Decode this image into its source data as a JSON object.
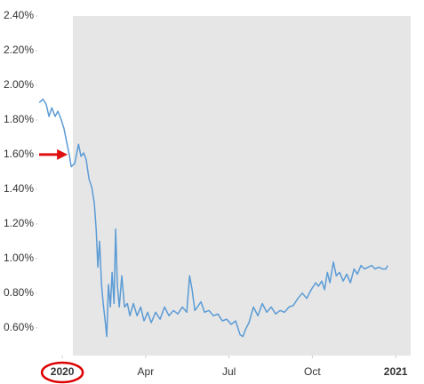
{
  "chart_data": {
    "type": "line",
    "x": [
      -0.83,
      -0.7,
      -0.58,
      -0.48,
      -0.38,
      -0.26,
      -0.16,
      -0.06,
      0.06,
      0.16,
      0.26,
      0.32,
      0.45,
      0.58,
      0.67,
      0.77,
      0.86,
      0.96,
      1.06,
      1.15,
      1.22,
      1.28,
      1.34,
      1.41,
      1.47,
      1.54,
      1.6,
      1.66,
      1.73,
      1.79,
      1.86,
      1.92,
      1.98,
      2.05,
      2.14,
      2.24,
      2.34,
      2.43,
      2.56,
      2.69,
      2.82,
      2.94,
      3.07,
      3.2,
      3.36,
      3.52,
      3.68,
      3.84,
      4.0,
      4.16,
      4.32,
      4.48,
      4.58,
      4.67,
      4.77,
      4.86,
      4.99,
      5.12,
      5.28,
      5.44,
      5.6,
      5.76,
      5.92,
      6.08,
      6.24,
      6.4,
      6.5,
      6.59,
      6.72,
      6.88,
      7.04,
      7.2,
      7.36,
      7.52,
      7.68,
      7.84,
      8.0,
      8.16,
      8.32,
      8.48,
      8.64,
      8.8,
      8.96,
      9.12,
      9.22,
      9.34,
      9.44,
      9.54,
      9.63,
      9.76,
      9.86,
      9.98,
      10.11,
      10.24,
      10.37,
      10.5,
      10.62,
      10.75,
      10.88,
      11.01,
      11.14,
      11.26,
      11.39,
      11.52,
      11.65,
      11.71
    ],
    "series": [
      {
        "color": "#5b9bd5",
        "values": [
          1.9,
          1.92,
          1.89,
          1.82,
          1.87,
          1.82,
          1.85,
          1.81,
          1.75,
          1.67,
          1.59,
          1.53,
          1.55,
          1.66,
          1.59,
          1.61,
          1.57,
          1.46,
          1.41,
          1.32,
          1.16,
          0.95,
          1.1,
          0.85,
          0.74,
          0.64,
          0.55,
          0.85,
          0.72,
          0.92,
          0.74,
          1.17,
          0.85,
          0.72,
          0.9,
          0.72,
          0.74,
          0.67,
          0.74,
          0.67,
          0.72,
          0.64,
          0.69,
          0.63,
          0.69,
          0.65,
          0.72,
          0.67,
          0.7,
          0.68,
          0.72,
          0.69,
          0.9,
          0.82,
          0.7,
          0.72,
          0.75,
          0.69,
          0.7,
          0.67,
          0.68,
          0.64,
          0.65,
          0.62,
          0.64,
          0.56,
          0.55,
          0.59,
          0.63,
          0.72,
          0.67,
          0.74,
          0.69,
          0.72,
          0.68,
          0.7,
          0.69,
          0.72,
          0.73,
          0.77,
          0.8,
          0.77,
          0.82,
          0.86,
          0.84,
          0.87,
          0.82,
          0.92,
          0.86,
          0.98,
          0.9,
          0.92,
          0.87,
          0.91,
          0.86,
          0.94,
          0.91,
          0.96,
          0.94,
          0.95,
          0.96,
          0.94,
          0.95,
          0.94,
          0.94,
          0.96
        ]
      }
    ],
    "xlim": [
      -0.9,
      12.54
    ],
    "xticks": [
      {
        "value": 0,
        "label": "2020"
      },
      {
        "value": 3,
        "label": "Apr"
      },
      {
        "value": 6,
        "label": "Jul"
      },
      {
        "value": 9,
        "label": "Oct"
      },
      {
        "value": 12,
        "label": "2021"
      }
    ],
    "ylim": [
      0.44,
      2.4
    ],
    "yticks": [
      {
        "value": 0.6,
        "label": "0.60%"
      },
      {
        "value": 0.8,
        "label": "0.80%"
      },
      {
        "value": 1.0,
        "label": "1.00%"
      },
      {
        "value": 1.2,
        "label": "1.20%"
      },
      {
        "value": 1.4,
        "label": "1.40%"
      },
      {
        "value": 1.6,
        "label": "1.60%"
      },
      {
        "value": 1.8,
        "label": "1.80%"
      },
      {
        "value": 2.0,
        "label": "2.00%"
      },
      {
        "value": 2.2,
        "label": "2.20%"
      },
      {
        "value": 2.4,
        "label": "2.40%"
      }
    ],
    "shaded_xrange": [
      0.38,
      12.54
    ],
    "shade_color": "#e6e6e6"
  }
}
